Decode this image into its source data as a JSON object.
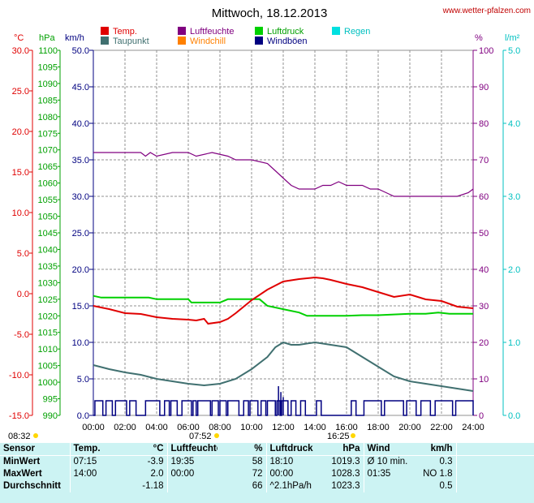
{
  "header": {
    "title": "Mittwoch, 18.12.2013",
    "site": "www.wetter-pfalzen.com"
  },
  "units": {
    "temp": "°C",
    "pressure": "hPa",
    "wind": "km/h",
    "humidity": "%",
    "rain": "l/m²"
  },
  "legend": [
    {
      "label": "Temp.",
      "color": "#e00000"
    },
    {
      "label": "Taupunkt",
      "color": "#407070"
    },
    {
      "label": "Luftfeuchte",
      "color": "#800080"
    },
    {
      "label": "Windchill",
      "color": "#ff8000"
    },
    {
      "label": "Luftdruck",
      "color": "#00d000"
    },
    {
      "label": "Windböen",
      "color": "#000080"
    },
    {
      "label": "Regen",
      "color": "#00e0e0"
    }
  ],
  "sun": {
    "sunrise": "08:32",
    "noon": "07:52",
    "sunset": "16:25"
  },
  "chart_data": {
    "type": "line",
    "title": "Mittwoch, 18.12.2013",
    "x_ticks": [
      "00:00",
      "02:00",
      "04:00",
      "06:00",
      "08:00",
      "10:00",
      "12:00",
      "14:00",
      "16:00",
      "18:00",
      "20:00",
      "22:00",
      "24:00"
    ],
    "axes": {
      "temp": {
        "min": -15,
        "max": 30,
        "step": 5,
        "labels": [
          "30.0",
          "25.0",
          "20.0",
          "15.0",
          "10.0",
          "5.0",
          "0.0",
          "-5.0",
          "-10.0",
          "-15.0"
        ],
        "color": "#e00000"
      },
      "pressure": {
        "min": 990,
        "max": 1100,
        "labels": [
          "1100",
          "1095",
          "1090",
          "1085",
          "1080",
          "1075",
          "1070",
          "1065",
          "1060",
          "1055",
          "1050",
          "1045",
          "1040",
          "1035",
          "1030",
          "1025",
          "1020",
          "1015",
          "1010",
          "1005",
          "1000",
          "995",
          "990"
        ],
        "color": "#00a000"
      },
      "wind": {
        "min": 0,
        "max": 50,
        "labels": [
          "50.0",
          "45.0",
          "40.0",
          "35.0",
          "30.0",
          "25.0",
          "20.0",
          "15.0",
          "10.0",
          "5.0",
          "0.0"
        ],
        "color": "#000080"
      },
      "humidity": {
        "min": 0,
        "max": 100,
        "labels": [
          "100",
          "90",
          "80",
          "70",
          "60",
          "50",
          "40",
          "30",
          "20",
          "10",
          "0"
        ],
        "color": "#800080"
      },
      "rain": {
        "min": 0,
        "max": 5,
        "labels": [
          "5.0",
          "4.0",
          "3.0",
          "2.0",
          "1.0",
          "0.0"
        ],
        "color": "#00c0c0"
      }
    },
    "series": [
      {
        "name": "Luftfeuchte",
        "axis": "humidity",
        "color": "#800080",
        "x": [
          0,
          3,
          3.3,
          3.6,
          4,
          5,
          6,
          6.5,
          7.5,
          8.5,
          9,
          10,
          11,
          11.5,
          12,
          12.5,
          13,
          14,
          14.5,
          15,
          15.5,
          16,
          17,
          17.5,
          18,
          18.5,
          19,
          19.5,
          20,
          21,
          22,
          23,
          23.7,
          24
        ],
        "y": [
          72,
          72,
          71,
          72,
          71,
          72,
          72,
          71,
          72,
          71,
          70,
          70,
          69,
          67,
          65,
          63,
          62,
          62,
          63,
          63,
          64,
          63,
          63,
          62,
          62,
          61,
          60,
          60,
          60,
          60,
          60,
          60,
          61,
          62
        ]
      },
      {
        "name": "Luftdruck",
        "axis": "pressure",
        "color": "#00d000",
        "x": [
          0,
          0.5,
          3.5,
          4,
          6,
          6.2,
          8,
          8.5,
          10.5,
          11,
          12,
          13,
          13.5,
          14,
          16,
          17,
          18,
          20,
          21,
          21.8,
          22.5,
          24
        ],
        "y": [
          1026,
          1025.5,
          1025.5,
          1025,
          1025,
          1024,
          1024,
          1025,
          1025,
          1023,
          1022,
          1021,
          1020,
          1020,
          1020,
          1020.2,
          1020.2,
          1020.6,
          1020.6,
          1021,
          1020.6,
          1020.6
        ]
      },
      {
        "name": "Temp.",
        "axis": "temp",
        "color": "#e00000",
        "x": [
          0,
          1,
          2,
          3,
          4,
          5,
          6,
          6.5,
          7,
          7.25,
          8,
          8.5,
          9,
          10,
          11,
          12,
          13,
          14,
          14.5,
          15,
          16,
          17,
          18,
          19,
          20,
          21,
          22,
          23,
          24
        ],
        "y": [
          -1.5,
          -1.9,
          -2.4,
          -2.5,
          -2.9,
          -3.1,
          -3.2,
          -3.3,
          -3.1,
          -3.7,
          -3.5,
          -3.1,
          -2.4,
          -0.8,
          0.5,
          1.5,
          1.8,
          2.0,
          1.9,
          1.7,
          1.2,
          0.8,
          0.2,
          -0.4,
          -0.1,
          -0.7,
          -0.9,
          -1.6,
          -1.8
        ]
      },
      {
        "name": "Taupunkt",
        "axis": "temp",
        "color": "#407070",
        "x": [
          0,
          1,
          2,
          3,
          4,
          5,
          6,
          6.5,
          7,
          8,
          9,
          10,
          11,
          11.5,
          12,
          12.5,
          13,
          14,
          15,
          16,
          17,
          18,
          19,
          20,
          21,
          22,
          23,
          24
        ],
        "y": [
          -8.8,
          -9.3,
          -9.7,
          -10.0,
          -10.5,
          -10.8,
          -11.1,
          -11.2,
          -11.3,
          -11.1,
          -10.5,
          -9.3,
          -7.8,
          -6.6,
          -6.0,
          -6.3,
          -6.3,
          -6.0,
          -6.3,
          -6.6,
          -7.8,
          -9.0,
          -10.2,
          -10.8,
          -11.1,
          -11.4,
          -11.7,
          -12.0
        ]
      }
    ],
    "gust_pulses": [
      [
        0.1,
        0.6
      ],
      [
        0.8,
        1.2
      ],
      [
        1.4,
        2.1
      ],
      [
        2.3,
        2.7
      ],
      [
        3.3,
        4.2
      ],
      [
        4.5,
        4.8
      ],
      [
        4.9,
        5.3
      ],
      [
        5.6,
        6.2
      ],
      [
        6.3,
        6.5
      ],
      [
        6.6,
        7.4
      ],
      [
        7.5,
        7.9
      ],
      [
        8.0,
        8.4
      ],
      [
        8.5,
        9.2
      ],
      [
        9.5,
        9.8
      ],
      [
        9.9,
        10.4
      ],
      [
        10.6,
        10.9
      ],
      [
        11.0,
        11.5
      ],
      [
        11.6,
        11.8
      ],
      [
        11.9,
        12.3
      ],
      [
        12.5,
        12.8
      ],
      [
        13.1,
        13.4
      ],
      [
        14.1,
        14.4
      ],
      [
        16.3,
        16.6
      ],
      [
        17.1,
        18.2
      ],
      [
        18.4,
        19.6
      ],
      [
        19.8,
        20.4
      ],
      [
        20.7,
        21.3
      ],
      [
        21.6,
        22.7
      ],
      [
        22.9,
        24
      ]
    ],
    "gust_spikes": [
      [
        11.7,
        4.0
      ],
      [
        11.85,
        3.2
      ],
      [
        12.0,
        2.5
      ]
    ],
    "gust_level": 2.0
  },
  "stats": {
    "headers": {
      "sensor": "Sensor",
      "temp": "Temp.",
      "temp_unit": "°C",
      "hum": "Luftfeuchte",
      "hum_unit": "%",
      "press": "Luftdruck",
      "press_unit": "hPa",
      "wind": "Wind",
      "wind_unit": "km/h"
    },
    "rows": [
      {
        "label": "MinWert",
        "t_time": "07:15",
        "t_val": "-3.9",
        "h_time": "19:35",
        "h_val": "58",
        "p_time": "18:10",
        "p_val": "1019.3",
        "w_time": "Ø 10 min.",
        "w_val": "0.3"
      },
      {
        "label": "MaxWert",
        "t_time": "14:00",
        "t_val": "2.0",
        "h_time": "00:00",
        "h_val": "72",
        "p_time": "00:00",
        "p_val": "1028.3",
        "w_time": "01:35",
        "w_val": "NO 1.8"
      },
      {
        "label": "Durchschnitt",
        "t_time": "",
        "t_val": "-1.18",
        "h_time": "",
        "h_val": "66",
        "p_time": "^2.1hPa/h",
        "p_val": "1023.3",
        "w_time": "",
        "w_val": "0.5"
      }
    ]
  }
}
